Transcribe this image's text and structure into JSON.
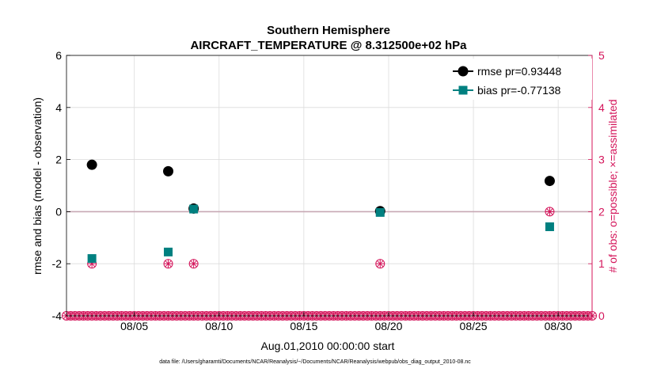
{
  "chart_data": {
    "type": "scatter",
    "title": "Southern Hemisphere",
    "subtitle": "AIRCRAFT_TEMPERATURE @ 8.312500e+02 hPa",
    "xlabel": "Aug.01,2010 00:00:00 start",
    "ylabel": "rmse and bias (model - observation)",
    "ylabel_right": "# of obs: o=possible; ×=assimilated",
    "xlim": [
      1.0,
      32.0
    ],
    "ylim": [
      -4,
      6
    ],
    "ylim_right": [
      0,
      5
    ],
    "x_tick_values": [
      5,
      10,
      15,
      20,
      25,
      30
    ],
    "x_tick_labels": [
      "08/05",
      "08/10",
      "08/15",
      "08/20",
      "08/25",
      "08/30"
    ],
    "y_ticks": [
      -4,
      -2,
      0,
      2,
      4,
      6
    ],
    "y_ticks_right": [
      0,
      1,
      2,
      3,
      4,
      5
    ],
    "grid": true,
    "legend_position": "top-right",
    "series": [
      {
        "name": "rmse pr=0.93448",
        "color": "#000000",
        "marker": "circle",
        "x": [
          2.5,
          7.0,
          8.5,
          19.5,
          29.5
        ],
        "values": [
          1.8,
          1.55,
          0.12,
          0.02,
          1.18
        ]
      },
      {
        "name": "bias pr=-0.77138",
        "color": "#008080",
        "marker": "square",
        "x": [
          2.5,
          7.0,
          8.5,
          19.5,
          29.5
        ],
        "values": [
          -1.8,
          -1.55,
          0.1,
          -0.03,
          -0.58
        ]
      }
    ],
    "obs_counts": {
      "axis": "right",
      "color": "#d4145a",
      "x": [
        2.5,
        7.0,
        8.5,
        19.5,
        29.5
      ],
      "possible": [
        1,
        1,
        1,
        1,
        2
      ],
      "assimilated": [
        1,
        1,
        1,
        1,
        2
      ],
      "zero_markers_interval_days": 0.25
    },
    "reference_line_y": 0
  },
  "footnote": "data file: /Users/gharamti/Documents/NCAR/Reanalysis/~/Documents/NCAR/Reanalysis/webpub/obs_diag_output_2010-08.nc"
}
